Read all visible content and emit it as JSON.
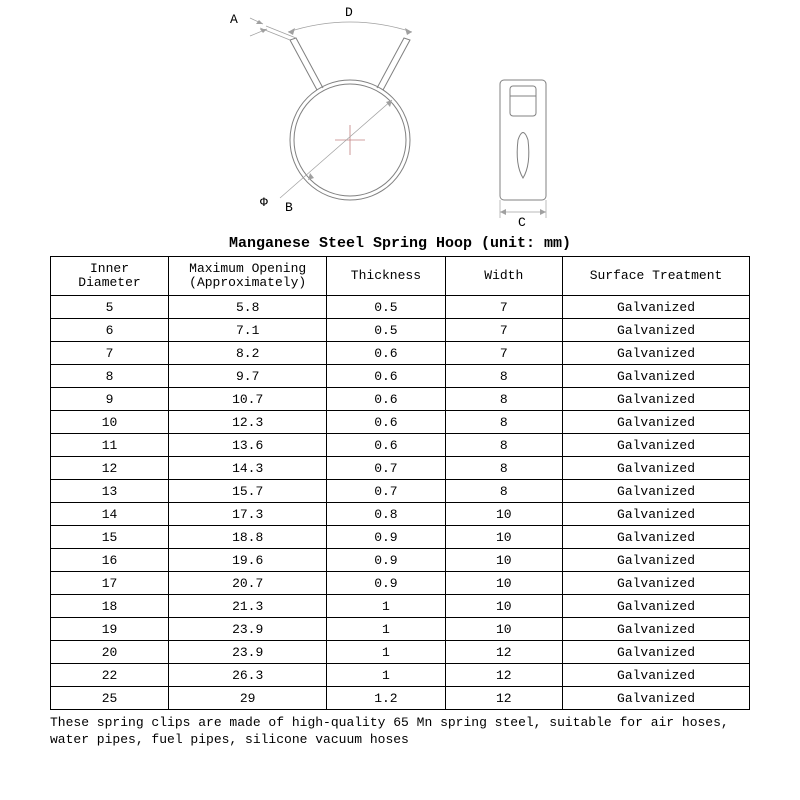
{
  "diagram": {
    "labels": {
      "A": "A",
      "D": "D",
      "phi": "Φ",
      "B": "B",
      "C": "C"
    },
    "stroke": "#808080",
    "thinStroke": "#a0a0a0",
    "centerLine": "#c08080"
  },
  "title": "Manganese Steel Spring Hoop (unit: mm)",
  "table": {
    "columns": [
      "Inner Diameter",
      "Maximum Opening (Approximately)",
      "Thickness",
      "Width",
      "Surface Treatment"
    ],
    "rows": [
      [
        "5",
        "5.8",
        "0.5",
        "7",
        "Galvanized"
      ],
      [
        "6",
        "7.1",
        "0.5",
        "7",
        "Galvanized"
      ],
      [
        "7",
        "8.2",
        "0.6",
        "7",
        "Galvanized"
      ],
      [
        "8",
        "9.7",
        "0.6",
        "8",
        "Galvanized"
      ],
      [
        "9",
        "10.7",
        "0.6",
        "8",
        "Galvanized"
      ],
      [
        "10",
        "12.3",
        "0.6",
        "8",
        "Galvanized"
      ],
      [
        "11",
        "13.6",
        "0.6",
        "8",
        "Galvanized"
      ],
      [
        "12",
        "14.3",
        "0.7",
        "8",
        "Galvanized"
      ],
      [
        "13",
        "15.7",
        "0.7",
        "8",
        "Galvanized"
      ],
      [
        "14",
        "17.3",
        "0.8",
        "10",
        "Galvanized"
      ],
      [
        "15",
        "18.8",
        "0.9",
        "10",
        "Galvanized"
      ],
      [
        "16",
        "19.6",
        "0.9",
        "10",
        "Galvanized"
      ],
      [
        "17",
        "20.7",
        "0.9",
        "10",
        "Galvanized"
      ],
      [
        "18",
        "21.3",
        "1",
        "10",
        "Galvanized"
      ],
      [
        "19",
        "23.9",
        "1",
        "10",
        "Galvanized"
      ],
      [
        "20",
        "23.9",
        "1",
        "12",
        "Galvanized"
      ],
      [
        "22",
        "26.3",
        "1",
        "12",
        "Galvanized"
      ],
      [
        "25",
        "29",
        "1.2",
        "12",
        "Galvanized"
      ]
    ]
  },
  "footnote": "These spring clips are made of high-quality 65 Mn spring steel, suitable for air hoses, water pipes, fuel pipes, silicone vacuum hoses"
}
